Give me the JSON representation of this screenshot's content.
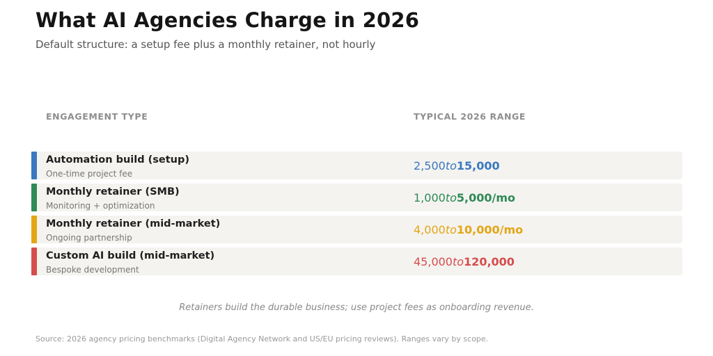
{
  "title": "What AI Agencies Charge in 2026",
  "subtitle": "Default structure: a setup fee plus a monthly retainer, not hourly",
  "headers": {
    "left": "ENGAGEMENT TYPE",
    "right": "TYPICAL 2026 RANGE"
  },
  "rows": [
    {
      "name": "Automation build (setup)",
      "sub": "One-time project fee",
      "range_low": "2,500",
      "range_mid": "to",
      "range_high": "15,000",
      "color": "#3a78c0"
    },
    {
      "name": "Monthly retainer (SMB)",
      "sub": "Monitoring + optimization",
      "range_low": "1,000",
      "range_mid": "to",
      "range_high": "5,000/mo",
      "color": "#2e8a57"
    },
    {
      "name": "Monthly retainer (mid-market)",
      "sub": "Ongoing partnership",
      "range_low": "4,000",
      "range_mid": "to",
      "range_high": "10,000/mo",
      "color": "#e3a615"
    },
    {
      "name": "Custom AI build (mid-market)",
      "sub": "Bespoke development",
      "range_low": "45,000",
      "range_mid": "to",
      "range_high": "120,000",
      "color": "#d64d4d"
    }
  ],
  "note": "Retainers build the durable business; use project fees as onboarding revenue.",
  "source": "Source: 2026 agency pricing benchmarks (Digital Agency Network and US/EU pricing reviews). Ranges vary by scope."
}
